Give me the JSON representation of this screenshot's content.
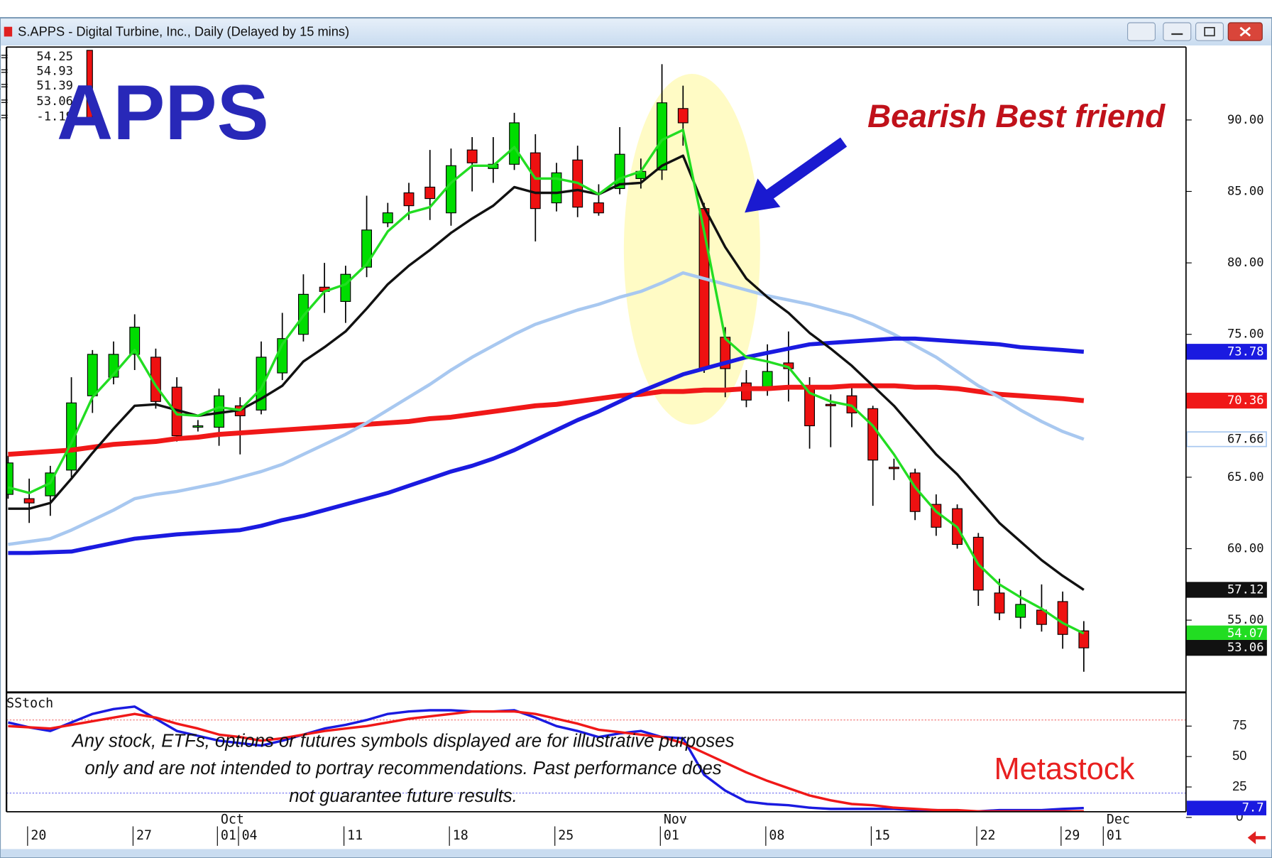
{
  "window_title": "S.APPS - Digital Turbine, Inc., Daily (Delayed by 15 mins)",
  "disclaimer": [
    "Any stock, ETFs, options or futures symbols displayed are for illustrative purposes",
    "only and are not intended to portray recommendations. Past performance does",
    "not guarantee future results."
  ],
  "brand": "Metastock",
  "chart_data": [
    {
      "type": "candlestick",
      "title": "APPS",
      "annotation": "Bearish Best friend",
      "ohlc_labels": [
        "O=",
        "H=",
        "L=",
        "C=",
        "Δ="
      ],
      "change": -1.19,
      "categories": [
        null,
        "20",
        null,
        null,
        null,
        null,
        "27",
        null,
        null,
        null,
        "01",
        "04",
        null,
        null,
        null,
        null,
        "11",
        null,
        null,
        null,
        null,
        "18",
        null,
        null,
        null,
        null,
        "25",
        null,
        null,
        null,
        null,
        "01",
        null,
        null,
        null,
        null,
        "08",
        null,
        null,
        null,
        null,
        "15",
        null,
        null,
        null,
        null,
        "22",
        null,
        null,
        null,
        "29",
        null
      ],
      "month_labels": [
        "Oct",
        "Nov",
        "Dec"
      ],
      "end_label": "01",
      "open": [
        63.8,
        63.5,
        63.7,
        65.5,
        70.7,
        72,
        73.6,
        73.4,
        71.3,
        68.5,
        68.5,
        70,
        69.7,
        72.3,
        75,
        78.3,
        77.3,
        79.7,
        82.8,
        84.9,
        85.3,
        83.5,
        87.9,
        86.6,
        86.9,
        87.7,
        84.2,
        87.2,
        84.2,
        85.2,
        85.9,
        86.5,
        90.8,
        83.8,
        74.8,
        71.6,
        71.1,
        73,
        71.4,
        70.1,
        70.7,
        69.8,
        65.7,
        65.3,
        63.1,
        62.8,
        60.8,
        56.9,
        55.2,
        55.7,
        56.3,
        54.25
      ],
      "high": [
        66.5,
        64.9,
        65.8,
        72,
        73.9,
        74.5,
        76.4,
        74,
        72,
        69,
        71.2,
        70.6,
        74.5,
        76.5,
        79.2,
        80,
        79.8,
        84.7,
        84.2,
        85.6,
        87.9,
        88,
        88.8,
        88.8,
        90.5,
        89,
        87,
        88.2,
        85.5,
        89.5,
        87.3,
        93.9,
        92.4,
        84.2,
        75.5,
        72.5,
        74.3,
        75.2,
        72,
        70.8,
        71.3,
        70,
        66.3,
        65.6,
        63.8,
        63.1,
        61.1,
        57.9,
        57.1,
        57.5,
        57,
        54.93
      ],
      "low": [
        63.5,
        61.8,
        62.3,
        65,
        69.5,
        71.5,
        72.5,
        69.8,
        67.5,
        68.2,
        67.2,
        66.6,
        69.4,
        71.8,
        74.5,
        76.5,
        75.8,
        79,
        82.5,
        83,
        83,
        82.6,
        85,
        85.6,
        86.5,
        81.5,
        83.6,
        83.2,
        83.3,
        84.8,
        85.2,
        85.8,
        88.2,
        72.3,
        70.6,
        69.9,
        70.7,
        70.3,
        67,
        67.1,
        68.5,
        63,
        64.8,
        62,
        60.9,
        60,
        56,
        55,
        54.4,
        54.2,
        53,
        51.39
      ],
      "close": [
        66,
        63.2,
        65.3,
        70.2,
        73.6,
        73.6,
        75.5,
        70.3,
        67.9,
        68.6,
        70.7,
        69.3,
        73.4,
        74.7,
        77.8,
        78,
        79.2,
        82.3,
        83.5,
        84,
        84.5,
        86.8,
        87,
        86.9,
        89.8,
        83.8,
        86.3,
        83.9,
        83.5,
        87.6,
        86.4,
        91.2,
        89.8,
        72.6,
        72.6,
        70.4,
        72.4,
        72.6,
        68.6,
        70,
        69.5,
        66.2,
        65.6,
        62.6,
        61.5,
        60.3,
        57.1,
        55.5,
        56.1,
        54.7,
        54,
        53.06
      ],
      "up_color": "#00dd00",
      "down_color": "#ee1111",
      "overlays": [
        {
          "color": "#f01818",
          "values": [
            66.6,
            66.7,
            66.8,
            66.9,
            67.1,
            67.3,
            67.4,
            67.5,
            67.7,
            67.8,
            68,
            68.1,
            68.2,
            68.3,
            68.4,
            68.5,
            68.6,
            68.7,
            68.8,
            68.9,
            69.1,
            69.2,
            69.4,
            69.6,
            69.8,
            70,
            70.1,
            70.3,
            70.5,
            70.7,
            70.8,
            71,
            71,
            71.1,
            71.1,
            71.2,
            71.2,
            71.3,
            71.3,
            71.3,
            71.4,
            71.4,
            71.4,
            71.3,
            71.3,
            71.2,
            71,
            70.8,
            70.7,
            70.6,
            70.5,
            70.36
          ]
        },
        {
          "color": "#a8c8f0",
          "values": [
            60.3,
            60.5,
            60.7,
            61.3,
            62,
            62.7,
            63.5,
            63.8,
            64,
            64.3,
            64.6,
            65,
            65.4,
            65.9,
            66.6,
            67.3,
            68,
            68.8,
            69.7,
            70.6,
            71.5,
            72.5,
            73.4,
            74.2,
            75,
            75.7,
            76.2,
            76.7,
            77.1,
            77.6,
            78,
            78.6,
            79.3,
            78.9,
            78.5,
            78.1,
            77.7,
            77.4,
            77.1,
            76.7,
            76.3,
            75.7,
            75,
            74.2,
            73.4,
            72.4,
            71.4,
            70.6,
            69.7,
            68.9,
            68.2,
            67.66
          ]
        },
        {
          "color": "#1a1ae0",
          "values": [
            59.7,
            59.7,
            59.75,
            59.8,
            60.1,
            60.4,
            60.7,
            60.85,
            61,
            61.1,
            61.2,
            61.3,
            61.6,
            62,
            62.3,
            62.7,
            63.1,
            63.5,
            63.9,
            64.4,
            64.9,
            65.4,
            65.8,
            66.3,
            66.9,
            67.6,
            68.3,
            69,
            69.6,
            70.3,
            71,
            71.6,
            72.2,
            72.6,
            73,
            73.4,
            73.7,
            74,
            74.3,
            74.4,
            74.5,
            74.6,
            74.7,
            74.7,
            74.6,
            74.5,
            74.4,
            74.3,
            74.1,
            74,
            73.9,
            73.78
          ]
        },
        {
          "color": "#111111",
          "values": [
            62.8,
            62.8,
            63.2,
            64.9,
            66.7,
            68.4,
            70,
            70.1,
            69.7,
            69.3,
            69.5,
            69.7,
            70.5,
            71.4,
            73.1,
            74.1,
            75.2,
            76.8,
            78.5,
            79.8,
            80.9,
            82.1,
            83.1,
            84,
            85.3,
            84.9,
            84.9,
            85.1,
            84.8,
            85.5,
            85.6,
            86.8,
            87.5,
            83.9,
            81.1,
            78.9,
            77.6,
            76.5,
            75.1,
            74,
            72.8,
            71.4,
            70,
            68.3,
            66.6,
            65.2,
            63.5,
            61.8,
            60.5,
            59.2,
            58.1,
            57.12
          ]
        },
        {
          "color": "#22dd22",
          "values": [
            64.3,
            63.9,
            64.6,
            67.4,
            70.6,
            72.2,
            73.9,
            71.4,
            69.4,
            69.3,
            69.9,
            69.7,
            71.2,
            74.3,
            76.3,
            78,
            78.5,
            79.9,
            82.2,
            83.5,
            83.9,
            85.6,
            86.8,
            86.8,
            88.1,
            85.9,
            85.9,
            85.6,
            84.8,
            85.9,
            86.4,
            88.6,
            89.3,
            82.2,
            74.7,
            73.4,
            73.1,
            72.7,
            70.9,
            70.3,
            70,
            68.6,
            66.6,
            64.3,
            62.6,
            61.5,
            58.9,
            57.5,
            56.6,
            55.8,
            54.8,
            54.07
          ]
        }
      ],
      "ylim": [
        50,
        95.1
      ],
      "yticks": [
        {
          "value": 55,
          "label": "55.00"
        },
        {
          "value": 60,
          "label": "60.00"
        },
        {
          "value": 65,
          "label": "65.00"
        },
        {
          "value": 75,
          "label": "75.00"
        },
        {
          "value": 80,
          "label": "80.00"
        },
        {
          "value": 85,
          "label": "85.00"
        },
        {
          "value": 90,
          "label": "90.00"
        }
      ]
    },
    {
      "type": "line",
      "title": "SStoch",
      "series": [
        {
          "color": "#1a1ae0",
          "values": [
            78,
            74,
            71,
            78,
            85,
            89,
            91,
            81,
            71,
            67,
            63,
            61,
            59,
            63,
            68,
            73,
            76,
            80,
            85,
            87,
            88,
            88,
            87,
            87,
            88,
            82,
            75,
            71,
            66,
            69,
            71,
            66,
            65,
            35,
            22,
            13,
            11,
            10,
            8,
            7,
            7,
            7,
            7,
            6,
            6,
            5,
            5,
            6,
            6,
            6,
            7,
            7.7
          ]
        },
        {
          "color": "#f01818",
          "values": [
            75,
            74,
            73,
            76,
            79,
            82,
            85,
            82,
            77,
            73,
            68,
            66,
            63,
            65,
            68,
            71,
            73,
            75,
            78,
            81,
            83,
            85,
            87,
            87,
            87,
            85,
            81,
            77,
            72,
            70,
            68,
            66,
            61,
            53,
            45,
            37,
            30,
            24,
            18,
            14,
            11,
            10,
            8,
            7,
            6,
            6,
            5,
            5,
            5,
            5,
            5,
            5
          ]
        }
      ],
      "ylim": [
        0,
        100
      ],
      "yticks": [
        0,
        25,
        50,
        75
      ],
      "reference_lines": [
        20,
        80
      ]
    }
  ]
}
